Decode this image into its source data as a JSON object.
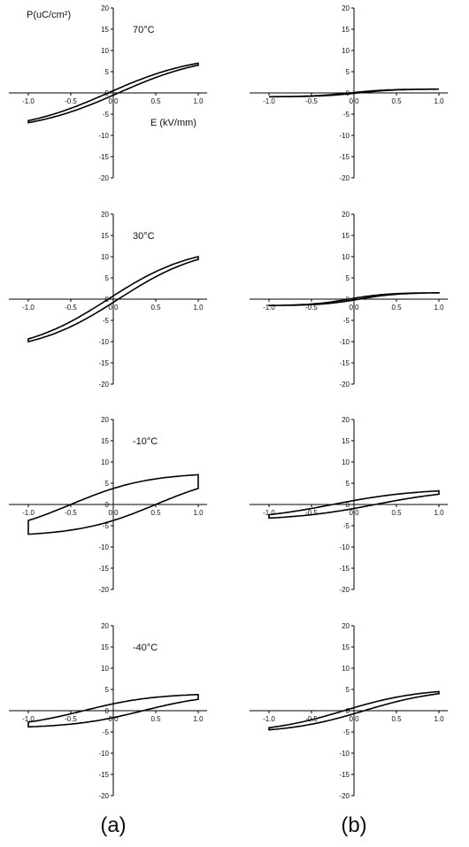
{
  "chart_data": {
    "type": "line",
    "x_axis_label": "E (kV/mm)",
    "y_axis_label": "P(uC/cm²)",
    "x_ticks": [
      "-1.0",
      "-0.5",
      "0.0",
      "0.5",
      "1.0"
    ],
    "y_ticks": [
      "20",
      "15",
      "10",
      "5",
      "0",
      "-5",
      "-10",
      "-15",
      "-20"
    ],
    "xlim": [
      -1.0,
      1.0
    ],
    "ylim": [
      -20,
      20
    ],
    "panel_labels": [
      "(a)",
      "(b)"
    ],
    "panels": [
      {
        "column": "a",
        "row": 0,
        "temperature": "70°C",
        "show_axis_titles": true,
        "loop": {
          "Pmax": 7.0,
          "Pr": 0.4,
          "Ec": 0.06
        }
      },
      {
        "column": "a",
        "row": 1,
        "temperature": "30°C",
        "show_axis_titles": false,
        "loop": {
          "Pmax": 10.0,
          "Pr": 0.6,
          "Ec": 0.06
        }
      },
      {
        "column": "a",
        "row": 2,
        "temperature": "-10°C",
        "show_axis_titles": false,
        "loop": {
          "Pmax": 7.0,
          "Pr": 3.5,
          "Ec": 0.5
        }
      },
      {
        "column": "a",
        "row": 3,
        "temperature": "-40°C",
        "show_axis_titles": false,
        "loop": {
          "Pmax": 3.8,
          "Pr": 1.5,
          "Ec": 0.35
        }
      },
      {
        "column": "b",
        "row": 0,
        "temperature": "",
        "show_axis_titles": false,
        "loop": {
          "Pmax": 0.9,
          "Pr": 0.1,
          "Ec": 0.05
        }
      },
      {
        "column": "b",
        "row": 1,
        "temperature": "",
        "show_axis_titles": false,
        "loop": {
          "Pmax": 1.5,
          "Pr": 0.2,
          "Ec": 0.06
        }
      },
      {
        "column": "b",
        "row": 2,
        "temperature": "",
        "show_axis_titles": false,
        "loop": {
          "Pmax": 3.2,
          "Pr": 0.8,
          "Ec": 0.25
        }
      },
      {
        "column": "b",
        "row": 3,
        "temperature": "",
        "show_axis_titles": false,
        "loop": {
          "Pmax": 4.5,
          "Pr": 0.6,
          "Ec": 0.12
        }
      }
    ]
  }
}
